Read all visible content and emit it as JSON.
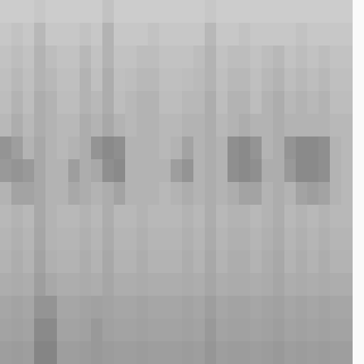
{
  "chart_data": {
    "type": "heatmap",
    "tick_labels": false,
    "zlim": [
      0,
      1
    ],
    "cells": [
      [
        0.2,
        0.2,
        0.2,
        0.22,
        0.2,
        0.2,
        0.2,
        0.2,
        0.2,
        0.24,
        0.2,
        0.2,
        0.2,
        0.2,
        0.2,
        0.2,
        0.2,
        0.2,
        0.22,
        0.2,
        0.2,
        0.2,
        0.2,
        0.2,
        0.2,
        0.2,
        0.2,
        0.2,
        0.2,
        0.2,
        0.2,
        0.02
      ],
      [
        0.22,
        0.24,
        0.22,
        0.28,
        0.22,
        0.22,
        0.22,
        0.24,
        0.22,
        0.3,
        0.22,
        0.22,
        0.22,
        0.24,
        0.22,
        0.22,
        0.22,
        0.22,
        0.28,
        0.22,
        0.22,
        0.24,
        0.22,
        0.22,
        0.22,
        0.22,
        0.24,
        0.22,
        0.22,
        0.22,
        0.22,
        0.02
      ],
      [
        0.24,
        0.26,
        0.24,
        0.3,
        0.26,
        0.24,
        0.24,
        0.28,
        0.24,
        0.3,
        0.24,
        0.24,
        0.26,
        0.26,
        0.24,
        0.24,
        0.24,
        0.26,
        0.3,
        0.24,
        0.26,
        0.26,
        0.24,
        0.26,
        0.28,
        0.24,
        0.26,
        0.24,
        0.26,
        0.24,
        0.24,
        0.02
      ],
      [
        0.25,
        0.28,
        0.25,
        0.3,
        0.28,
        0.25,
        0.25,
        0.3,
        0.25,
        0.32,
        0.25,
        0.26,
        0.28,
        0.28,
        0.25,
        0.25,
        0.26,
        0.27,
        0.3,
        0.25,
        0.28,
        0.28,
        0.25,
        0.28,
        0.3,
        0.26,
        0.28,
        0.26,
        0.28,
        0.25,
        0.25,
        0.02
      ],
      [
        0.26,
        0.3,
        0.26,
        0.32,
        0.3,
        0.26,
        0.26,
        0.3,
        0.28,
        0.32,
        0.26,
        0.28,
        0.3,
        0.3,
        0.26,
        0.26,
        0.28,
        0.28,
        0.32,
        0.26,
        0.3,
        0.3,
        0.26,
        0.3,
        0.32,
        0.28,
        0.3,
        0.28,
        0.3,
        0.26,
        0.26,
        0.02
      ],
      [
        0.28,
        0.32,
        0.28,
        0.32,
        0.3,
        0.28,
        0.28,
        0.32,
        0.3,
        0.34,
        0.3,
        0.28,
        0.3,
        0.3,
        0.28,
        0.28,
        0.3,
        0.3,
        0.32,
        0.28,
        0.3,
        0.32,
        0.3,
        0.3,
        0.32,
        0.3,
        0.3,
        0.3,
        0.3,
        0.28,
        0.28,
        0.02
      ],
      [
        0.42,
        0.38,
        0.3,
        0.34,
        0.3,
        0.28,
        0.3,
        0.32,
        0.42,
        0.46,
        0.44,
        0.3,
        0.3,
        0.3,
        0.28,
        0.3,
        0.36,
        0.3,
        0.32,
        0.3,
        0.44,
        0.46,
        0.42,
        0.3,
        0.32,
        0.42,
        0.46,
        0.46,
        0.44,
        0.3,
        0.28,
        0.02
      ],
      [
        0.4,
        0.42,
        0.4,
        0.34,
        0.3,
        0.3,
        0.38,
        0.32,
        0.34,
        0.44,
        0.46,
        0.3,
        0.3,
        0.3,
        0.3,
        0.38,
        0.42,
        0.3,
        0.32,
        0.3,
        0.44,
        0.46,
        0.44,
        0.32,
        0.32,
        0.4,
        0.46,
        0.46,
        0.44,
        0.3,
        0.28,
        0.02
      ],
      [
        0.3,
        0.36,
        0.36,
        0.34,
        0.3,
        0.3,
        0.34,
        0.32,
        0.3,
        0.32,
        0.36,
        0.3,
        0.3,
        0.3,
        0.28,
        0.3,
        0.32,
        0.3,
        0.32,
        0.3,
        0.32,
        0.36,
        0.36,
        0.3,
        0.32,
        0.3,
        0.36,
        0.38,
        0.36,
        0.3,
        0.28,
        0.02
      ],
      [
        0.28,
        0.3,
        0.28,
        0.34,
        0.3,
        0.28,
        0.28,
        0.3,
        0.28,
        0.32,
        0.28,
        0.28,
        0.3,
        0.28,
        0.28,
        0.28,
        0.3,
        0.28,
        0.32,
        0.28,
        0.3,
        0.3,
        0.28,
        0.3,
        0.32,
        0.28,
        0.3,
        0.28,
        0.3,
        0.28,
        0.28,
        0.02
      ],
      [
        0.29,
        0.31,
        0.29,
        0.35,
        0.3,
        0.29,
        0.29,
        0.31,
        0.29,
        0.33,
        0.29,
        0.29,
        0.31,
        0.29,
        0.29,
        0.29,
        0.31,
        0.29,
        0.33,
        0.29,
        0.31,
        0.31,
        0.29,
        0.31,
        0.33,
        0.29,
        0.31,
        0.29,
        0.31,
        0.29,
        0.29,
        0.02
      ],
      [
        0.3,
        0.32,
        0.3,
        0.36,
        0.31,
        0.3,
        0.3,
        0.32,
        0.3,
        0.34,
        0.3,
        0.3,
        0.32,
        0.3,
        0.3,
        0.3,
        0.32,
        0.3,
        0.34,
        0.3,
        0.32,
        0.32,
        0.3,
        0.32,
        0.34,
        0.3,
        0.32,
        0.3,
        0.32,
        0.3,
        0.3,
        0.02
      ],
      [
        0.32,
        0.33,
        0.32,
        0.38,
        0.34,
        0.32,
        0.32,
        0.33,
        0.32,
        0.35,
        0.32,
        0.32,
        0.33,
        0.32,
        0.32,
        0.32,
        0.33,
        0.32,
        0.35,
        0.32,
        0.33,
        0.33,
        0.32,
        0.33,
        0.35,
        0.32,
        0.33,
        0.32,
        0.33,
        0.32,
        0.32,
        0.02
      ],
      [
        0.35,
        0.36,
        0.35,
        0.42,
        0.42,
        0.35,
        0.35,
        0.36,
        0.37,
        0.36,
        0.35,
        0.35,
        0.36,
        0.35,
        0.35,
        0.35,
        0.36,
        0.35,
        0.38,
        0.35,
        0.36,
        0.36,
        0.35,
        0.36,
        0.37,
        0.35,
        0.36,
        0.35,
        0.36,
        0.35,
        0.35,
        0.02
      ],
      [
        0.36,
        0.37,
        0.36,
        0.46,
        0.46,
        0.36,
        0.36,
        0.37,
        0.4,
        0.37,
        0.36,
        0.36,
        0.37,
        0.36,
        0.36,
        0.36,
        0.37,
        0.36,
        0.4,
        0.36,
        0.37,
        0.37,
        0.36,
        0.37,
        0.38,
        0.36,
        0.37,
        0.36,
        0.37,
        0.36,
        0.36,
        0.02
      ],
      [
        0.38,
        0.39,
        0.38,
        0.48,
        0.48,
        0.38,
        0.38,
        0.39,
        0.4,
        0.39,
        0.38,
        0.38,
        0.39,
        0.38,
        0.38,
        0.38,
        0.39,
        0.38,
        0.41,
        0.38,
        0.39,
        0.39,
        0.38,
        0.39,
        0.4,
        0.38,
        0.39,
        0.38,
        0.39,
        0.38,
        0.38,
        0.02
      ]
    ]
  }
}
